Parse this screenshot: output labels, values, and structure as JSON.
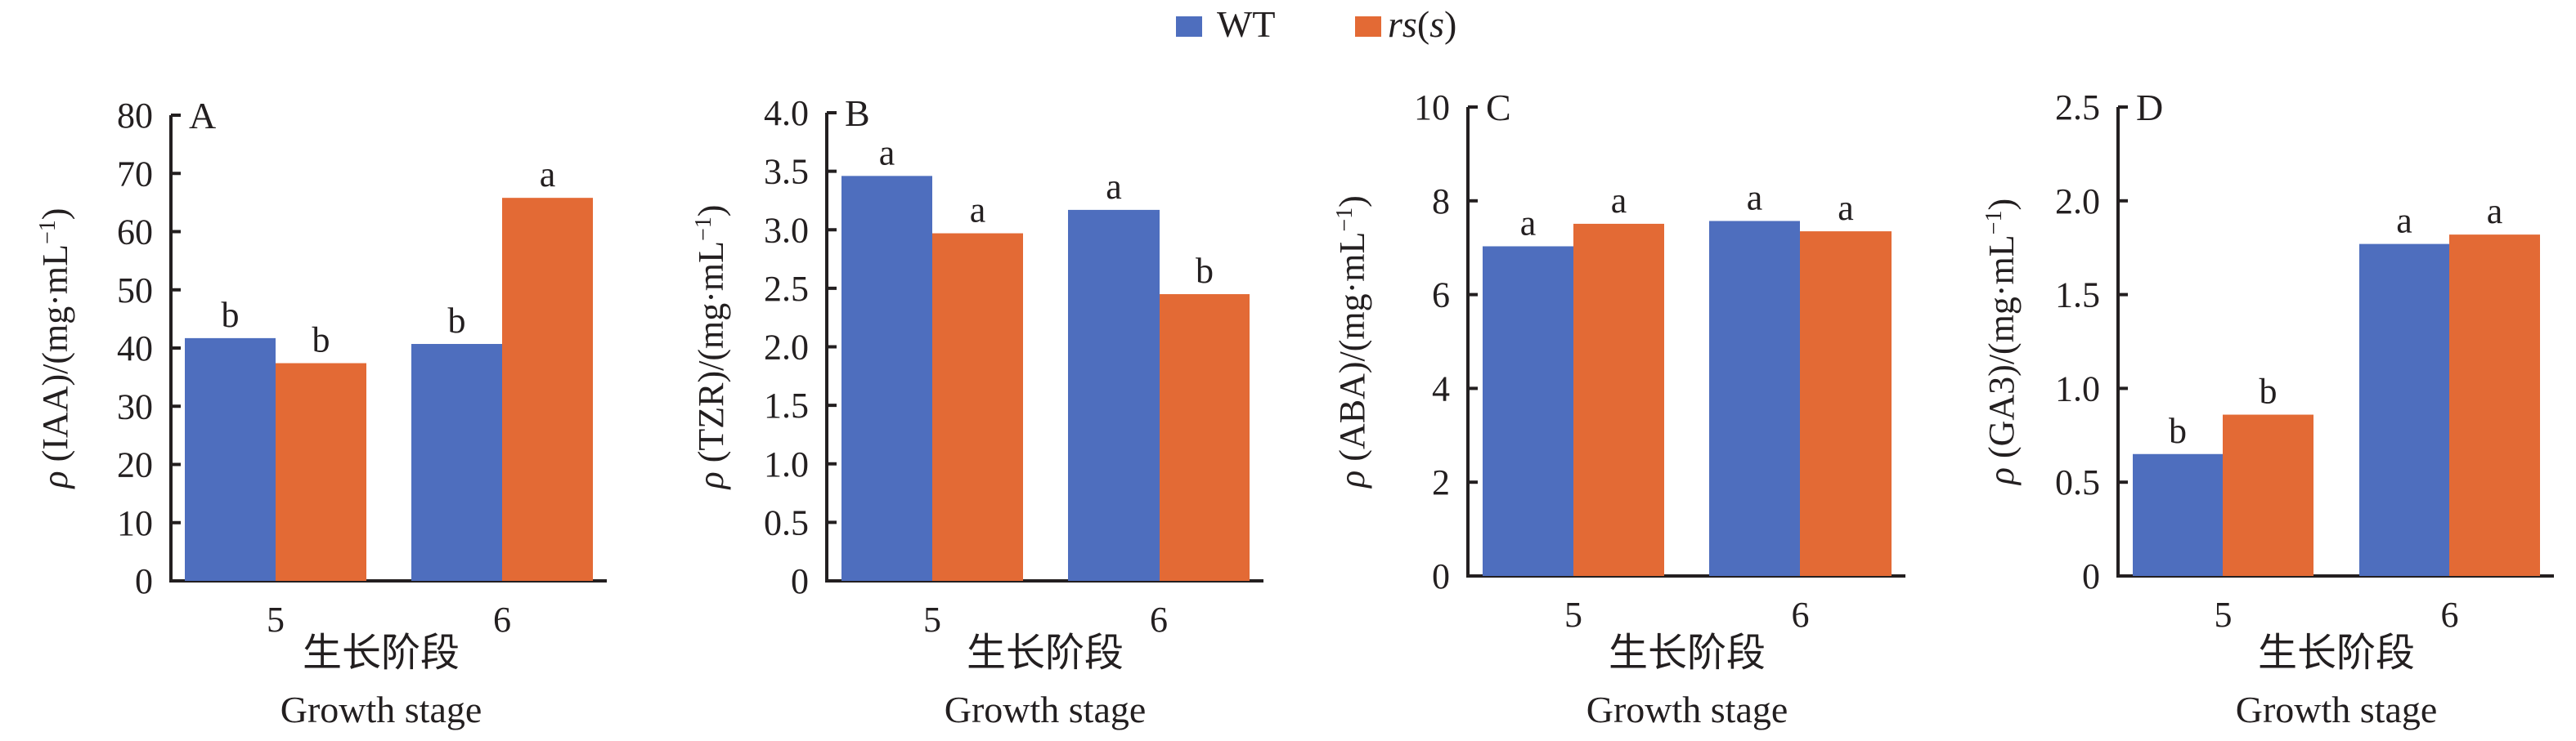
{
  "legend": {
    "items": [
      {
        "name": "WT",
        "name_parts": [
          {
            "text": "WT",
            "italic": false
          }
        ],
        "color": "#4e6ebe"
      },
      {
        "name": "rs(s)",
        "name_parts": [
          {
            "text": "rs",
            "italic": true
          },
          {
            "text": "(",
            "italic": false
          },
          {
            "text": "s",
            "italic": true
          },
          {
            "text": ")",
            "italic": false
          }
        ],
        "color": "#e36a35"
      }
    ]
  },
  "chart_data": [
    {
      "type": "bar",
      "panel": "A",
      "title": "",
      "categories": [
        "5",
        "6"
      ],
      "xlabel": "生长阶段",
      "xlabel_en": "Growth stage",
      "ylabel_symbol": "ρ",
      "ylabel": "(IAA)/(mg·mL",
      "ylabel_sup": "−1",
      "ylabel_close": ")",
      "ylim": [
        0,
        80
      ],
      "yticks": [
        0,
        10,
        20,
        30,
        40,
        50,
        60,
        70,
        80
      ],
      "ytick_labels": [
        "0",
        "10",
        "20",
        "30",
        "40",
        "50",
        "60",
        "70",
        "80"
      ],
      "grid": false,
      "series": [
        {
          "name": "WT",
          "values": [
            41.7,
            40.7
          ],
          "significance": [
            "b",
            "b"
          ]
        },
        {
          "name": "rs(s)",
          "values": [
            37.4,
            65.8
          ],
          "significance": [
            "b",
            "a"
          ]
        }
      ]
    },
    {
      "type": "bar",
      "panel": "B",
      "title": "",
      "categories": [
        "5",
        "6"
      ],
      "xlabel": "生长阶段",
      "xlabel_en": "Growth stage",
      "ylabel_symbol": "ρ",
      "ylabel": "(TZR)/(mg·mL",
      "ylabel_sup": "−1",
      "ylabel_close": ")",
      "ylim": [
        0,
        4.0
      ],
      "yticks": [
        0,
        0.5,
        1.0,
        1.5,
        2.0,
        2.5,
        3.0,
        3.5,
        4.0
      ],
      "ytick_labels": [
        "0",
        "0.5",
        "1.0",
        "1.5",
        "2.0",
        "2.5",
        "3.0",
        "3.5",
        "4.0"
      ],
      "grid": false,
      "series": [
        {
          "name": "WT",
          "values": [
            3.46,
            3.17
          ],
          "significance": [
            "a",
            "a"
          ]
        },
        {
          "name": "rs(s)",
          "values": [
            2.97,
            2.45
          ],
          "significance": [
            "a",
            "b"
          ]
        }
      ]
    },
    {
      "type": "bar",
      "panel": "C",
      "title": "",
      "categories": [
        "5",
        "6"
      ],
      "xlabel": "生长阶段",
      "xlabel_en": "Growth stage",
      "ylabel_symbol": "ρ",
      "ylabel": "(ABA)/(mg·mL",
      "ylabel_sup": "−1",
      "ylabel_close": ")",
      "ylim": [
        0,
        10
      ],
      "yticks": [
        0,
        2,
        4,
        6,
        8,
        10
      ],
      "ytick_labels": [
        "0",
        "2",
        "4",
        "6",
        "8",
        "10"
      ],
      "grid": false,
      "series": [
        {
          "name": "WT",
          "values": [
            7.03,
            7.57
          ],
          "significance": [
            "a",
            "a"
          ]
        },
        {
          "name": "rs(s)",
          "values": [
            7.51,
            7.35
          ],
          "significance": [
            "a",
            "a"
          ]
        }
      ]
    },
    {
      "type": "bar",
      "panel": "D",
      "title": "",
      "categories": [
        "5",
        "6"
      ],
      "xlabel": "生长阶段",
      "xlabel_en": "Growth stage",
      "ylabel_symbol": "ρ",
      "ylabel": "(GA3)/(mg·mL",
      "ylabel_sup": "−1",
      "ylabel_close": ")",
      "ylim": [
        0,
        2.5
      ],
      "yticks": [
        0,
        0.5,
        1.0,
        1.5,
        2.0,
        2.5
      ],
      "ytick_labels": [
        "0",
        "0.5",
        "1.0",
        "1.5",
        "2.0",
        "2.5"
      ],
      "grid": false,
      "series": [
        {
          "name": "WT",
          "values": [
            0.65,
            1.77
          ],
          "significance": [
            "b",
            "a"
          ]
        },
        {
          "name": "rs(s)",
          "values": [
            0.86,
            1.82
          ],
          "significance": [
            "b",
            "a"
          ]
        }
      ]
    }
  ]
}
